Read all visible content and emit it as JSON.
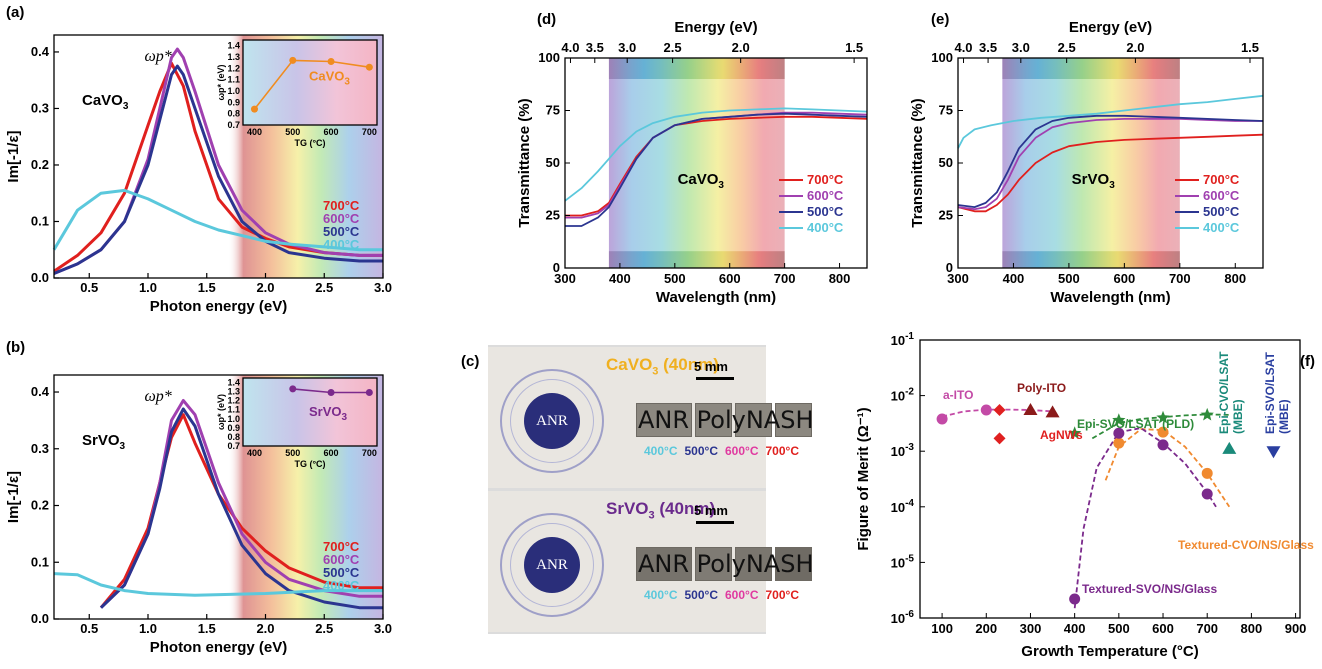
{
  "panels": {
    "a": "(a)",
    "b": "(b)",
    "c": "(c)",
    "d": "(d)",
    "e": "(e)",
    "f": "(f)"
  },
  "colors": {
    "t700": "#e0201e",
    "t600": "#a040b0",
    "t500": "#2b3590",
    "t400": "#5bc8dc",
    "cvo_label": "#f08c20",
    "svo_label": "#7b2a8c"
  },
  "temps": [
    "700°C",
    "600°C",
    "500°C",
    "400°C"
  ],
  "chart_data": [
    {
      "id": "a",
      "type": "line",
      "xlabel": "Photon energy (eV)",
      "ylabel": "Im[-1/ε]",
      "xlim": [
        0.2,
        3.0
      ],
      "ylim": [
        0.0,
        0.43
      ],
      "xticks": [
        "0.5",
        "1.0",
        "1.5",
        "2.0",
        "2.5",
        "3.0"
      ],
      "yticks": [
        "0.0",
        "0.1",
        "0.2",
        "0.3",
        "0.4"
      ],
      "material": "CaVO3",
      "peak_label": "ωp*",
      "series": [
        {
          "name": "700°C",
          "x": [
            0.2,
            0.4,
            0.6,
            0.8,
            1.0,
            1.1,
            1.2,
            1.3,
            1.4,
            1.6,
            1.8,
            2.0,
            2.2,
            2.5,
            2.8,
            3.0
          ],
          "y": [
            0.012,
            0.04,
            0.08,
            0.15,
            0.27,
            0.33,
            0.38,
            0.34,
            0.26,
            0.14,
            0.09,
            0.07,
            0.055,
            0.045,
            0.04,
            0.04
          ]
        },
        {
          "name": "600°C",
          "x": [
            0.2,
            0.4,
            0.6,
            0.8,
            1.0,
            1.1,
            1.2,
            1.25,
            1.3,
            1.4,
            1.6,
            1.8,
            2.0,
            2.2,
            2.5,
            2.8,
            3.0
          ],
          "y": [
            0.008,
            0.025,
            0.05,
            0.1,
            0.21,
            0.3,
            0.39,
            0.405,
            0.39,
            0.33,
            0.2,
            0.12,
            0.08,
            0.06,
            0.045,
            0.04,
            0.04
          ]
        },
        {
          "name": "500°C",
          "x": [
            0.2,
            0.4,
            0.6,
            0.8,
            1.0,
            1.1,
            1.2,
            1.25,
            1.3,
            1.4,
            1.6,
            1.8,
            2.0,
            2.2,
            2.5,
            2.8,
            3.0
          ],
          "y": [
            0.008,
            0.025,
            0.05,
            0.1,
            0.2,
            0.28,
            0.36,
            0.375,
            0.36,
            0.3,
            0.18,
            0.1,
            0.065,
            0.045,
            0.035,
            0.03,
            0.03
          ]
        },
        {
          "name": "400°C",
          "x": [
            0.2,
            0.4,
            0.6,
            0.8,
            1.0,
            1.2,
            1.4,
            1.6,
            1.8,
            2.0,
            2.2,
            2.5,
            2.8,
            3.0
          ],
          "y": [
            0.05,
            0.12,
            0.15,
            0.155,
            0.14,
            0.12,
            0.1,
            0.085,
            0.075,
            0.065,
            0.06,
            0.055,
            0.05,
            0.05
          ]
        }
      ],
      "inset": {
        "ylabel": "ωp* (eV)",
        "xlabel": "TG (°C)",
        "material": "CaVO3",
        "xlim": [
          370,
          720
        ],
        "ylim": [
          0.7,
          1.45
        ],
        "xticks": [
          "400",
          "500",
          "600",
          "700"
        ],
        "yticks": [
          "0.7",
          "0.8",
          "0.9",
          "1.0",
          "1.1",
          "1.2",
          "1.3",
          "1.4"
        ],
        "x": [
          400,
          500,
          600,
          700
        ],
        "y": [
          0.84,
          1.27,
          1.26,
          1.21
        ]
      }
    },
    {
      "id": "b",
      "type": "line",
      "xlabel": "Photon energy (eV)",
      "ylabel": "Im[-1/ε]",
      "xlim": [
        0.2,
        3.0
      ],
      "ylim": [
        0.0,
        0.43
      ],
      "xticks": [
        "0.5",
        "1.0",
        "1.5",
        "2.0",
        "2.5",
        "3.0"
      ],
      "yticks": [
        "0.0",
        "0.1",
        "0.2",
        "0.3",
        "0.4"
      ],
      "material": "SrVO3",
      "peak_label": "ωp*",
      "series": [
        {
          "name": "700°C",
          "x": [
            0.6,
            0.8,
            1.0,
            1.1,
            1.2,
            1.3,
            1.4,
            1.6,
            1.8,
            2.0,
            2.2,
            2.5,
            2.8,
            3.0
          ],
          "y": [
            0.02,
            0.07,
            0.16,
            0.24,
            0.32,
            0.36,
            0.31,
            0.22,
            0.16,
            0.12,
            0.09,
            0.065,
            0.055,
            0.055
          ]
        },
        {
          "name": "600°C",
          "x": [
            0.6,
            0.8,
            1.0,
            1.1,
            1.2,
            1.3,
            1.4,
            1.6,
            1.8,
            2.0,
            2.2,
            2.5,
            2.8,
            3.0
          ],
          "y": [
            0.02,
            0.06,
            0.15,
            0.24,
            0.35,
            0.385,
            0.36,
            0.24,
            0.15,
            0.1,
            0.07,
            0.05,
            0.04,
            0.04
          ]
        },
        {
          "name": "500°C",
          "x": [
            0.6,
            0.8,
            1.0,
            1.1,
            1.2,
            1.3,
            1.4,
            1.6,
            1.8,
            2.0,
            2.2,
            2.5,
            2.8,
            3.0
          ],
          "y": [
            0.02,
            0.06,
            0.15,
            0.23,
            0.33,
            0.37,
            0.34,
            0.22,
            0.13,
            0.08,
            0.05,
            0.03,
            0.02,
            0.02
          ]
        },
        {
          "name": "400°C",
          "x": [
            0.2,
            0.4,
            0.6,
            0.8,
            1.0,
            1.4,
            2.0,
            2.5,
            3.0
          ],
          "y": [
            0.08,
            0.078,
            0.06,
            0.05,
            0.045,
            0.042,
            0.045,
            0.05,
            0.05
          ]
        }
      ],
      "inset": {
        "ylabel": "ωp* (eV)",
        "xlabel": "TG (°C)",
        "material": "SrVO3",
        "xlim": [
          370,
          720
        ],
        "ylim": [
          0.7,
          1.45
        ],
        "xticks": [
          "400",
          "500",
          "600",
          "700"
        ],
        "yticks": [
          "0.7",
          "0.8",
          "0.9",
          "1.0",
          "1.1",
          "1.2",
          "1.3",
          "1.4"
        ],
        "x": [
          500,
          600,
          700
        ],
        "y": [
          1.33,
          1.29,
          1.29
        ]
      }
    },
    {
      "id": "d",
      "type": "line",
      "xlabel": "Wavelength (nm)",
      "ylabel": "Transmittance (%)",
      "x2label": "Energy (eV)",
      "xlim": [
        300,
        850
      ],
      "ylim": [
        0,
        100
      ],
      "xticks": [
        "300",
        "400",
        "500",
        "600",
        "700",
        "800"
      ],
      "yticks": [
        "0",
        "25",
        "50",
        "75",
        "100"
      ],
      "x2ticks": [
        "4.0",
        "3.5",
        "3.0",
        "2.5",
        "2.0",
        "1.5"
      ],
      "material": "CaVO3",
      "series": [
        {
          "name": "700°C",
          "x": [
            300,
            330,
            360,
            380,
            400,
            430,
            460,
            500,
            550,
            600,
            650,
            700,
            750,
            800,
            850
          ],
          "y": [
            25,
            25,
            27,
            31,
            40,
            53,
            62,
            68,
            70,
            71,
            71.5,
            72,
            72,
            71.5,
            71
          ]
        },
        {
          "name": "600°C",
          "x": [
            300,
            330,
            360,
            380,
            400,
            430,
            460,
            500,
            550,
            600,
            650,
            700,
            750,
            800,
            850
          ],
          "y": [
            24,
            24,
            26,
            30,
            39,
            52,
            62,
            68,
            71,
            72,
            73,
            74,
            74,
            73.5,
            73
          ]
        },
        {
          "name": "500°C",
          "x": [
            300,
            330,
            360,
            380,
            400,
            430,
            460,
            500,
            550,
            600,
            650,
            700,
            750,
            800,
            850
          ],
          "y": [
            20,
            20,
            24,
            29,
            38,
            52,
            62,
            68,
            71,
            72,
            73,
            73.5,
            73,
            72.5,
            72
          ]
        },
        {
          "name": "400°C",
          "x": [
            300,
            330,
            360,
            380,
            400,
            430,
            460,
            500,
            550,
            600,
            650,
            700,
            750,
            800,
            850
          ],
          "y": [
            32,
            38,
            46,
            52,
            58,
            65,
            69,
            72,
            74,
            75,
            75.5,
            76,
            75.5,
            75,
            74.5
          ]
        }
      ]
    },
    {
      "id": "e",
      "type": "line",
      "xlabel": "Wavelength (nm)",
      "ylabel": "Transmittance (%)",
      "x2label": "Energy (eV)",
      "xlim": [
        300,
        850
      ],
      "ylim": [
        0,
        100
      ],
      "xticks": [
        "300",
        "400",
        "500",
        "600",
        "700",
        "800"
      ],
      "yticks": [
        "0",
        "25",
        "50",
        "75",
        "100"
      ],
      "x2ticks": [
        "4.0",
        "3.5",
        "3.0",
        "2.5",
        "2.0",
        "1.5"
      ],
      "material": "SrVO3",
      "series": [
        {
          "name": "700°C",
          "x": [
            300,
            330,
            350,
            370,
            390,
            410,
            440,
            470,
            500,
            550,
            600,
            650,
            700,
            750,
            800,
            850
          ],
          "y": [
            29,
            27,
            27,
            30,
            35,
            42,
            50,
            55,
            58,
            60,
            61,
            61.5,
            62,
            62.5,
            63,
            63.5
          ]
        },
        {
          "name": "600°C",
          "x": [
            300,
            330,
            350,
            370,
            390,
            410,
            440,
            470,
            500,
            550,
            600,
            650,
            700,
            750,
            800,
            850
          ],
          "y": [
            29,
            28,
            29,
            33,
            42,
            53,
            62,
            67,
            69,
            70.5,
            71,
            71,
            71,
            70.5,
            70,
            70
          ]
        },
        {
          "name": "500°C",
          "x": [
            300,
            330,
            350,
            370,
            390,
            410,
            440,
            470,
            500,
            550,
            600,
            650,
            700,
            750,
            800,
            850
          ],
          "y": [
            30,
            29,
            31,
            36,
            46,
            57,
            66,
            70,
            71.5,
            72.5,
            72.5,
            72,
            71.5,
            71,
            70.5,
            70
          ]
        },
        {
          "name": "400°C",
          "x": [
            300,
            310,
            330,
            360,
            400,
            450,
            500,
            550,
            600,
            650,
            700,
            750,
            800,
            850
          ],
          "y": [
            57,
            62,
            66,
            68,
            70,
            71.5,
            72.5,
            73.5,
            75,
            76.5,
            78,
            79,
            80.5,
            82
          ]
        }
      ]
    },
    {
      "id": "f",
      "type": "scatter",
      "xlabel": "Growth Temperature (°C)",
      "ylabel": "Figure of Merit (Ω⁻¹)",
      "xlim": [
        50,
        910
      ],
      "ylim_log10": [
        -6,
        -1
      ],
      "log_y": true,
      "xticks": [
        "100",
        "200",
        "300",
        "400",
        "500",
        "600",
        "700",
        "800",
        "900"
      ],
      "yticks": [
        "10-6",
        "10-5",
        "10-4",
        "10-3",
        "10-2",
        "10-1"
      ],
      "series": [
        {
          "name": "a-ITO",
          "color": "#c34aa6",
          "marker": "circle",
          "x": [
            100,
            200
          ],
          "y": [
            0.0038,
            0.0055
          ]
        },
        {
          "name": "Poly-ITO",
          "color": "#8b1a1a",
          "marker": "triangle",
          "x": [
            300,
            350
          ],
          "y": [
            0.0055,
            0.005
          ]
        },
        {
          "name": "AgNWs",
          "color": "#e02020",
          "marker": "diamond",
          "x": [
            230,
            230
          ],
          "y": [
            0.0017,
            0.0055
          ]
        },
        {
          "name": "Epi-SVO/LSAT (PLD)",
          "color": "#2e8b3a",
          "marker": "star",
          "x": [
            400,
            500,
            600,
            700
          ],
          "y": [
            0.0021,
            0.0036,
            0.004,
            0.0045
          ]
        },
        {
          "name": "Epi-CVO/LSAT (MBE)",
          "color": "#1a8a7a",
          "marker": "triangle",
          "x": [
            750
          ],
          "y": [
            0.0011
          ]
        },
        {
          "name": "Epi-SVO/LSAT (MBE)",
          "color": "#2a3fa0",
          "marker": "triangle-down",
          "x": [
            850
          ],
          "y": [
            0.001
          ]
        },
        {
          "name": "Textured-CVO/NS/Glass",
          "color": "#f08a30",
          "marker": "circle",
          "x": [
            500,
            600,
            700
          ],
          "y": [
            0.0014,
            0.0022,
            0.0004
          ]
        },
        {
          "name": "Textured-SVO/NS/Glass",
          "color": "#7b2a8c",
          "marker": "circle",
          "x": [
            400,
            500,
            600,
            700
          ],
          "y": [
            2.2e-06,
            0.0021,
            0.0013,
            0.00017
          ]
        }
      ]
    }
  ],
  "photo": {
    "cvo_title_main": "CaVO",
    "cvo_sub": "3",
    "cvo_title_rest": " (40nm)",
    "svo_title_main": "SrVO",
    "svo_sub": "3",
    "svo_title_rest": " (40nm)",
    "scale": "5 mm",
    "stamp_text": "ANR",
    "film_text": "ANR PolyNASH",
    "temps": [
      "400°C",
      "500°C",
      "600°C",
      "700°C"
    ],
    "temp_colors": [
      "#5bc8dc",
      "#2b3590",
      "#e03aa0",
      "#e0201e"
    ]
  }
}
